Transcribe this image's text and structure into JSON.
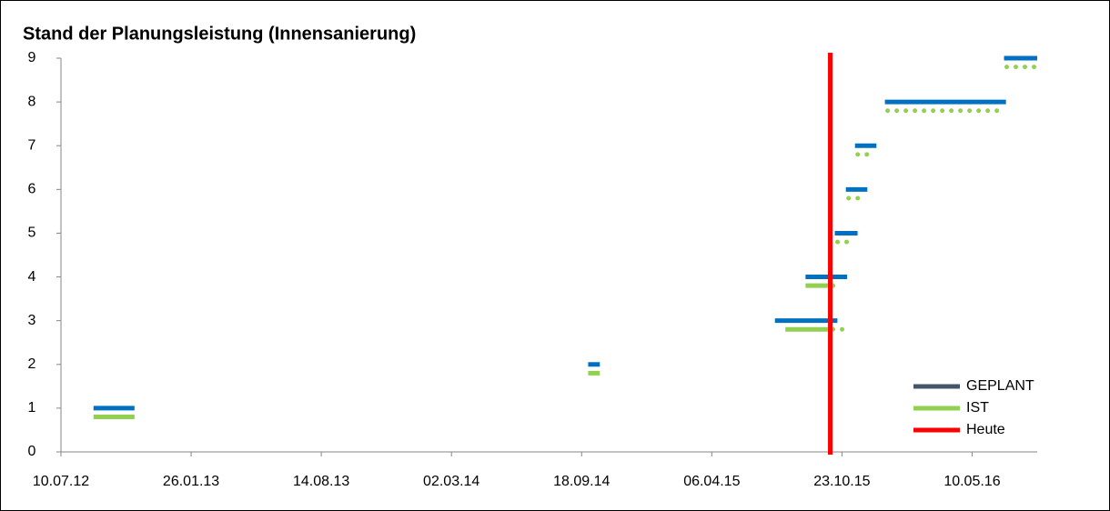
{
  "chart_data": {
    "type": "segments",
    "title": "Stand der Planungsleistung (Innensanierung)",
    "xlim": [
      41100,
      42600
    ],
    "xticks": [
      {
        "value": 41100,
        "label": "10.07.12"
      },
      {
        "value": 41300,
        "label": "26.01.13"
      },
      {
        "value": 41500,
        "label": "14.08.13"
      },
      {
        "value": 41700,
        "label": "02.03.14"
      },
      {
        "value": 41900,
        "label": "18.09.14"
      },
      {
        "value": 42100,
        "label": "06.04.15"
      },
      {
        "value": 42300,
        "label": "23.10.15"
      },
      {
        "value": 42500,
        "label": "10.05.16"
      }
    ],
    "ylim": [
      0,
      9
    ],
    "yticks": [
      0,
      1,
      2,
      3,
      4,
      5,
      6,
      7,
      8,
      9
    ],
    "legend": "lower right",
    "series": [
      {
        "name": "GEPLANT",
        "color": "#0070c0",
        "legend_color": "#44546a",
        "x_start": [
          41150,
          41910,
          42197,
          42244,
          42289,
          42306,
          42320,
          42366,
          42549
        ],
        "x_end": [
          41213,
          41928,
          42293,
          42308,
          42324,
          42339,
          42353,
          42552,
          42600
        ],
        "values": [
          1,
          2,
          3,
          4,
          5,
          6,
          7,
          8,
          9
        ]
      },
      {
        "name": "IST",
        "color": "#92d050",
        "x_start": [
          41150,
          41910,
          42213,
          42244,
          42289,
          42306,
          42320,
          42366,
          42549
        ],
        "x_end": [
          41213,
          41928,
          42303,
          42299,
          42311,
          42327,
          42341,
          42546,
          42600
        ],
        "values": [
          0.8,
          1.8,
          2.8,
          3.8,
          4.8,
          5.8,
          6.8,
          7.8,
          8.8
        ]
      }
    ],
    "marker": {
      "name": "Heute",
      "color": "#ff0000",
      "x": 42282
    }
  }
}
